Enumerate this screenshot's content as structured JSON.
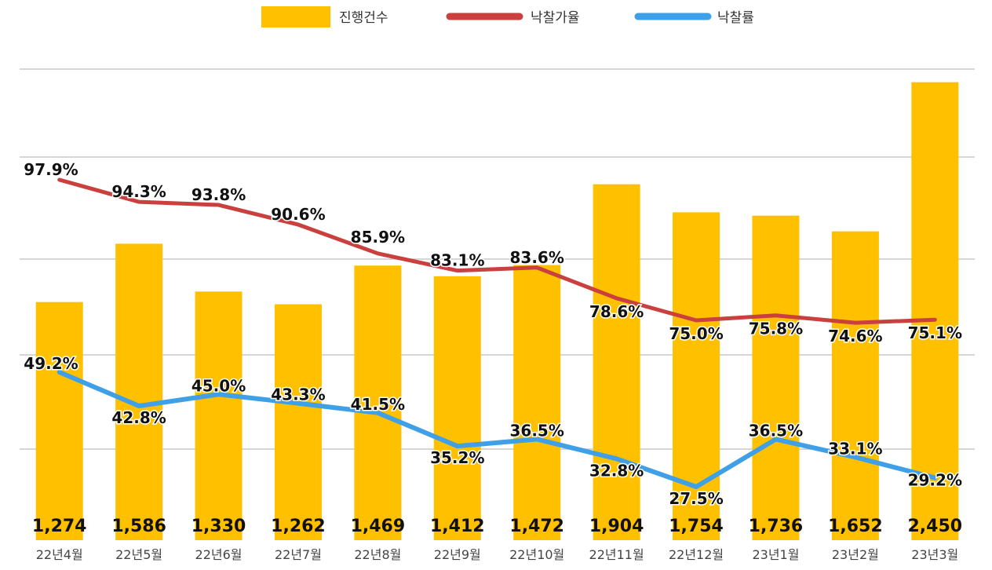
{
  "colors": {
    "bar": "#FFC000",
    "rate_line": "#C9403F",
    "success_line": "#3FA0E8",
    "grid": "#C8C8C8"
  },
  "legend": {
    "bars": "진행건수",
    "rate": "낙찰가율",
    "success": "낙찰률"
  },
  "chart_data": {
    "type": "bar",
    "categories": [
      "22년4월",
      "22년5월",
      "22년6월",
      "22년7월",
      "22년8월",
      "22년9월",
      "22년10월",
      "22년11월",
      "22년12월",
      "23년1월",
      "23년2월",
      "23년3월"
    ],
    "series": [
      {
        "name": "진행건수",
        "type": "bar",
        "values": [
          1274,
          1586,
          1330,
          1262,
          1469,
          1412,
          1472,
          1904,
          1754,
          1736,
          1652,
          2450
        ],
        "labels": [
          "1,274",
          "1,586",
          "1,330",
          "1,262",
          "1,469",
          "1,412",
          "1,472",
          "1,904",
          "1,754",
          "1,736",
          "1,652",
          "2,450"
        ]
      },
      {
        "name": "낙찰가율",
        "type": "line",
        "values": [
          97.9,
          94.3,
          93.8,
          90.6,
          85.9,
          83.1,
          83.6,
          78.6,
          75.0,
          75.8,
          74.6,
          75.1
        ],
        "labels": [
          "97.9%",
          "94.3%",
          "93.8%",
          "90.6%",
          "85.9%",
          "83.1%",
          "83.6%",
          "78.6%",
          "75.0%",
          "75.8%",
          "74.6%",
          "75.1%"
        ]
      },
      {
        "name": "낙찰률",
        "type": "line",
        "values": [
          49.2,
          42.8,
          45.0,
          43.3,
          41.5,
          35.2,
          36.5,
          32.8,
          27.5,
          36.5,
          33.1,
          29.2
        ],
        "labels": [
          "49.2%",
          "42.8%",
          "45.0%",
          "43.3%",
          "41.5%",
          "35.2%",
          "36.5%",
          "32.8%",
          "27.5%",
          "36.5%",
          "33.1%",
          "29.2%"
        ]
      }
    ],
    "legend_position": "top",
    "grid": true
  }
}
